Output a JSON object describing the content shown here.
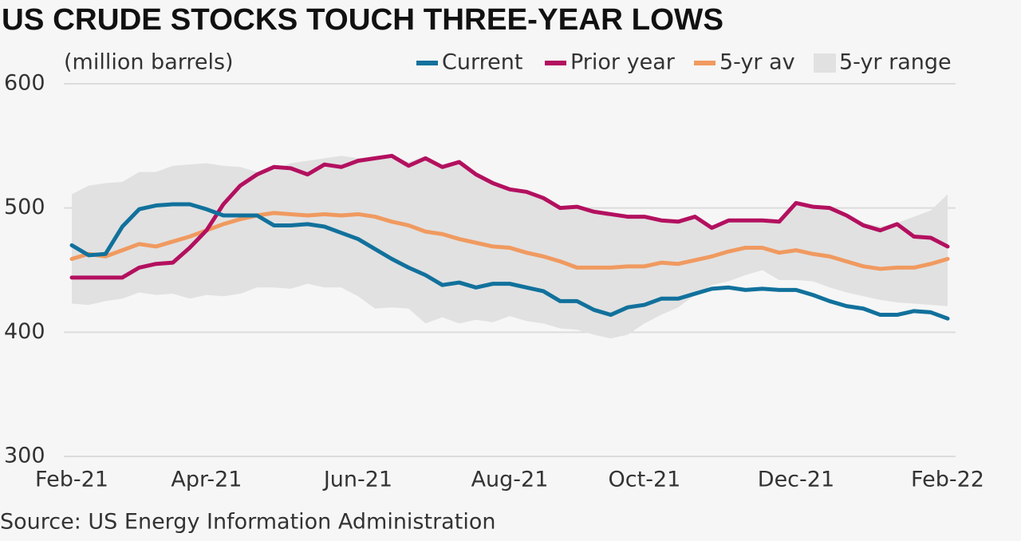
{
  "chart_data": {
    "type": "line",
    "title": "US CRUDE STOCKS TOUCH THREE-YEAR LOWS",
    "y_label": "(million barrels)",
    "source": "Source: US Energy Information Administration",
    "categories": [
      "Feb-21",
      null,
      null,
      null,
      null,
      null,
      null,
      null,
      "Apr-21",
      null,
      null,
      null,
      null,
      null,
      null,
      null,
      null,
      "Jun-21",
      null,
      null,
      null,
      null,
      null,
      null,
      null,
      null,
      "Aug-21",
      null,
      null,
      null,
      null,
      null,
      null,
      null,
      "Oct-21",
      null,
      null,
      null,
      null,
      null,
      null,
      null,
      null,
      "Dec-21",
      null,
      null,
      null,
      null,
      null,
      null,
      null,
      null,
      "Feb-22"
    ],
    "ylim": [
      300,
      600
    ],
    "yticks": [
      300,
      400,
      500,
      600
    ],
    "grid": true,
    "series": [
      {
        "name": "Current",
        "color": "#11719c",
        "values": [
          470,
          462,
          463,
          485,
          499,
          502,
          503,
          503,
          499,
          494,
          494,
          494,
          486,
          486,
          487,
          485,
          480,
          475,
          467,
          459,
          452,
          446,
          438,
          440,
          436,
          439,
          439,
          436,
          433,
          425,
          425,
          418,
          414,
          420,
          422,
          427,
          427,
          431,
          435,
          436,
          434,
          435,
          434,
          434,
          430,
          425,
          421,
          419,
          414,
          414,
          417,
          416,
          411
        ]
      },
      {
        "name": "Prior year",
        "color": "#b3105f",
        "values": [
          444,
          444,
          444,
          444,
          452,
          455,
          456,
          468,
          482,
          503,
          518,
          527,
          533,
          532,
          527,
          535,
          533,
          538,
          540,
          542,
          534,
          540,
          533,
          537,
          527,
          520,
          515,
          513,
          508,
          500,
          501,
          497,
          495,
          493,
          493,
          490,
          489,
          493,
          484,
          490,
          490,
          490,
          489,
          504,
          501,
          500,
          494,
          486,
          482,
          487,
          477,
          476,
          469
        ]
      },
      {
        "name": "5-yr av",
        "color": "#f09a60",
        "values": [
          459,
          463,
          461,
          466,
          471,
          469,
          473,
          477,
          482,
          487,
          491,
          494,
          496,
          495,
          494,
          495,
          494,
          495,
          493,
          489,
          486,
          481,
          479,
          475,
          472,
          469,
          468,
          464,
          461,
          457,
          452,
          452,
          452,
          453,
          453,
          456,
          455,
          458,
          461,
          465,
          468,
          468,
          464,
          466,
          463,
          461,
          457,
          453,
          451,
          452,
          452,
          455,
          459
        ]
      },
      {
        "name": "5-yr range",
        "color": "#e1e1e1",
        "type": "range",
        "high": [
          511,
          518,
          520,
          521,
          529,
          529,
          534,
          535,
          536,
          534,
          533,
          529,
          531,
          536,
          538,
          540,
          542,
          540,
          541,
          542,
          537,
          542,
          534,
          537,
          527,
          522,
          516,
          513,
          508,
          501,
          501,
          499,
          496,
          494,
          494,
          491,
          490,
          492,
          486,
          490,
          490,
          490,
          490,
          503,
          502,
          500,
          494,
          488,
          485,
          488,
          493,
          498,
          511
        ],
        "low": [
          423,
          422,
          425,
          427,
          432,
          430,
          431,
          427,
          430,
          429,
          431,
          436,
          436,
          435,
          439,
          436,
          436,
          429,
          419,
          420,
          419,
          407,
          412,
          407,
          410,
          408,
          413,
          409,
          407,
          403,
          402,
          398,
          395,
          398,
          407,
          414,
          420,
          430,
          438,
          441,
          446,
          450,
          442,
          442,
          441,
          436,
          432,
          429,
          426,
          424,
          423,
          422,
          421
        ]
      }
    ]
  }
}
